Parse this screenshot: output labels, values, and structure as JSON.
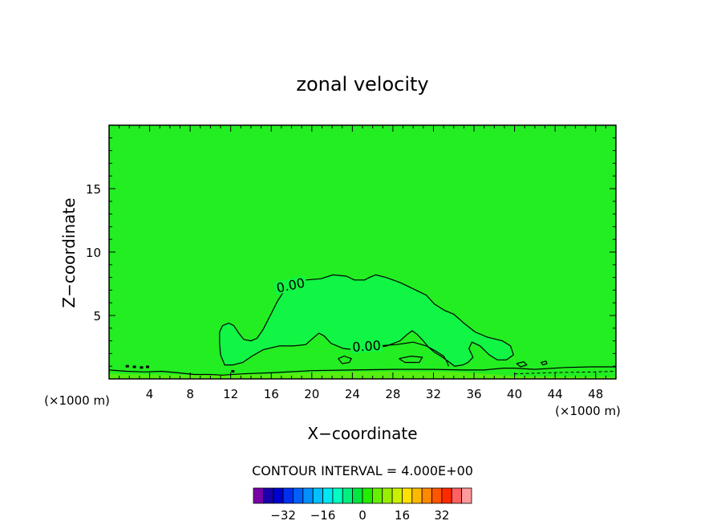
{
  "chart_data": {
    "type": "contour",
    "title": "zonal velocity",
    "xlabel": "X−coordinate",
    "ylabel": "Z−coordinate",
    "x_unit_left": "(×1000 m)",
    "x_unit_right": "(×1000 m)",
    "xlim": [
      0,
      50
    ],
    "ylim": [
      0,
      20
    ],
    "x_ticks": [
      4,
      8,
      12,
      16,
      20,
      24,
      28,
      32,
      36,
      40,
      44,
      48
    ],
    "y_ticks": [
      5,
      10,
      15
    ],
    "background_fill": "#22ee22",
    "inner_fill": "#11f544",
    "contour_label": "0.00",
    "contour_interval_text": "CONTOUR INTERVAL = 4.000E+00",
    "colorbar": {
      "colors": [
        "#7a00aa",
        "#1a00aa",
        "#0000cc",
        "#0030ee",
        "#0060ff",
        "#0090ff",
        "#00c0ff",
        "#00e8f0",
        "#00ffc0",
        "#00f080",
        "#00e840",
        "#22ee00",
        "#66f000",
        "#99ee00",
        "#c8f000",
        "#ffe000",
        "#ffb800",
        "#ff8800",
        "#ff5500",
        "#ff2a00",
        "#ff6060",
        "#ff9a9a"
      ],
      "tick_labels": [
        "−32",
        "−16",
        "0",
        "16",
        "32"
      ],
      "tick_values": [
        -32,
        -16,
        0,
        16,
        32
      ],
      "vmin": -44,
      "vmax": 44
    },
    "contour_paths": [
      {
        "name": "upper-zero-contour",
        "points": [
          [
            10.9,
            3.7
          ],
          [
            11.2,
            4.2
          ],
          [
            11.8,
            4.4
          ],
          [
            12.3,
            4.2
          ],
          [
            12.8,
            3.6
          ],
          [
            13.3,
            3.1
          ],
          [
            14.0,
            3.0
          ],
          [
            14.6,
            3.2
          ],
          [
            15.2,
            3.9
          ],
          [
            15.9,
            5.0
          ],
          [
            16.6,
            6.1
          ],
          [
            17.4,
            7.1
          ],
          [
            18.2,
            7.6
          ],
          [
            19.4,
            7.8
          ],
          [
            20.9,
            7.9
          ],
          [
            22.1,
            8.2
          ],
          [
            23.4,
            8.1
          ],
          [
            24.2,
            7.8
          ],
          [
            25.2,
            7.8
          ],
          [
            25.7,
            8.0
          ],
          [
            26.3,
            8.2
          ],
          [
            27.3,
            8.0
          ],
          [
            28.7,
            7.6
          ],
          [
            30.0,
            7.1
          ],
          [
            31.3,
            6.6
          ],
          [
            32.1,
            5.9
          ],
          [
            33.1,
            5.4
          ],
          [
            34.0,
            5.1
          ],
          [
            35.0,
            4.4
          ],
          [
            36.1,
            3.7
          ],
          [
            37.3,
            3.3
          ],
          [
            38.8,
            3.0
          ],
          [
            39.6,
            2.6
          ],
          [
            39.9,
            1.9
          ],
          [
            39.2,
            1.5
          ],
          [
            38.3,
            1.5
          ],
          [
            37.5,
            1.9
          ],
          [
            36.6,
            2.6
          ],
          [
            35.8,
            2.9
          ],
          [
            35.5,
            2.4
          ],
          [
            35.9,
            1.7
          ],
          [
            35.4,
            1.3
          ],
          [
            34.9,
            1.1
          ],
          [
            34.1,
            1.0
          ],
          [
            33.6,
            1.3
          ],
          [
            32.9,
            1.7
          ],
          [
            32.1,
            2.1
          ],
          [
            31.5,
            2.5
          ],
          [
            31.0,
            3.0
          ],
          [
            30.4,
            3.5
          ],
          [
            29.9,
            3.8
          ],
          [
            29.4,
            3.5
          ],
          [
            28.7,
            3.0
          ],
          [
            27.4,
            2.6
          ],
          [
            25.8,
            2.4
          ],
          [
            24.3,
            2.3
          ],
          [
            23.1,
            2.4
          ],
          [
            21.9,
            2.8
          ],
          [
            21.2,
            3.4
          ],
          [
            20.7,
            3.6
          ],
          [
            20.1,
            3.2
          ],
          [
            19.4,
            2.7
          ],
          [
            18.2,
            2.6
          ],
          [
            16.8,
            2.6
          ],
          [
            15.2,
            2.3
          ],
          [
            14.1,
            1.8
          ],
          [
            13.2,
            1.3
          ],
          [
            12.2,
            1.1
          ],
          [
            11.4,
            1.1
          ],
          [
            11.0,
            1.9
          ],
          [
            10.9,
            2.8
          ],
          [
            10.9,
            3.7
          ]
        ],
        "label_at": [
          17.9,
          7.4
        ],
        "label_rotation": -12
      },
      {
        "name": "inner-zero-contour",
        "points": [
          [
            24.8,
            2.5
          ],
          [
            26.5,
            2.6
          ],
          [
            28.3,
            2.7
          ],
          [
            30.0,
            2.9
          ],
          [
            31.3,
            2.6
          ],
          [
            32.2,
            2.2
          ],
          [
            33.0,
            1.8
          ],
          [
            33.3,
            1.4
          ],
          [
            33.5,
            1.0
          ]
        ],
        "label_at": [
          25.4,
          2.6
        ],
        "label_rotation": -4
      },
      {
        "name": "small-contour-a",
        "points": [
          [
            22.6,
            1.6
          ],
          [
            23.2,
            1.8
          ],
          [
            23.9,
            1.6
          ],
          [
            23.7,
            1.3
          ],
          [
            23.0,
            1.2
          ],
          [
            22.6,
            1.6
          ]
        ]
      },
      {
        "name": "small-contour-b",
        "points": [
          [
            28.6,
            1.6
          ],
          [
            29.8,
            1.8
          ],
          [
            30.9,
            1.7
          ],
          [
            30.6,
            1.3
          ],
          [
            29.2,
            1.3
          ],
          [
            28.6,
            1.6
          ]
        ]
      },
      {
        "name": "near-surface-contour",
        "points": [
          [
            0.0,
            0.7
          ],
          [
            1.7,
            0.6
          ],
          [
            3.5,
            0.55
          ],
          [
            5.2,
            0.6
          ],
          [
            6.6,
            0.5
          ],
          [
            8.4,
            0.35
          ],
          [
            10.0,
            0.35
          ],
          [
            11.2,
            0.3
          ],
          [
            13.2,
            0.4
          ],
          [
            16.4,
            0.5
          ],
          [
            20.0,
            0.65
          ],
          [
            24.0,
            0.7
          ],
          [
            28.0,
            0.75
          ],
          [
            32.0,
            0.75
          ],
          [
            35.0,
            0.7
          ],
          [
            37.0,
            0.7
          ],
          [
            38.9,
            0.85
          ],
          [
            40.0,
            0.85
          ],
          [
            42.0,
            0.75
          ],
          [
            45.0,
            0.9
          ],
          [
            47.5,
            0.95
          ],
          [
            50.0,
            0.95
          ]
        ]
      },
      {
        "name": "small-contour-c",
        "points": [
          [
            40.2,
            1.2
          ],
          [
            40.9,
            1.35
          ],
          [
            41.2,
            1.1
          ],
          [
            40.6,
            0.95
          ],
          [
            40.2,
            1.2
          ]
        ]
      },
      {
        "name": "small-contour-d",
        "points": [
          [
            42.6,
            1.3
          ],
          [
            43.1,
            1.4
          ],
          [
            43.2,
            1.2
          ],
          [
            42.8,
            1.1
          ],
          [
            42.6,
            1.3
          ]
        ]
      }
    ],
    "surface_band": {
      "name": "lighter-surface-band",
      "fill": "#55ee11",
      "points": [
        [
          0.0,
          0.0
        ],
        [
          0.0,
          0.4
        ],
        [
          5.0,
          0.35
        ],
        [
          10.0,
          0.3
        ],
        [
          15.0,
          0.35
        ],
        [
          18.0,
          0.45
        ],
        [
          22.0,
          0.55
        ],
        [
          28.0,
          0.6
        ],
        [
          34.0,
          0.55
        ],
        [
          38.0,
          0.35
        ],
        [
          40.0,
          0.2
        ],
        [
          50.0,
          0.15
        ],
        [
          50.0,
          0.0
        ]
      ]
    },
    "dashed_contour": {
      "name": "dashed-near-surface-contour",
      "points": [
        [
          40.0,
          0.4
        ],
        [
          44.0,
          0.5
        ],
        [
          48.0,
          0.55
        ],
        [
          50.0,
          0.6
        ]
      ]
    },
    "dots": [
      [
        1.8,
        1.0
      ],
      [
        2.5,
        0.95
      ],
      [
        3.2,
        0.9
      ],
      [
        3.8,
        0.95
      ],
      [
        12.2,
        0.6
      ]
    ]
  }
}
